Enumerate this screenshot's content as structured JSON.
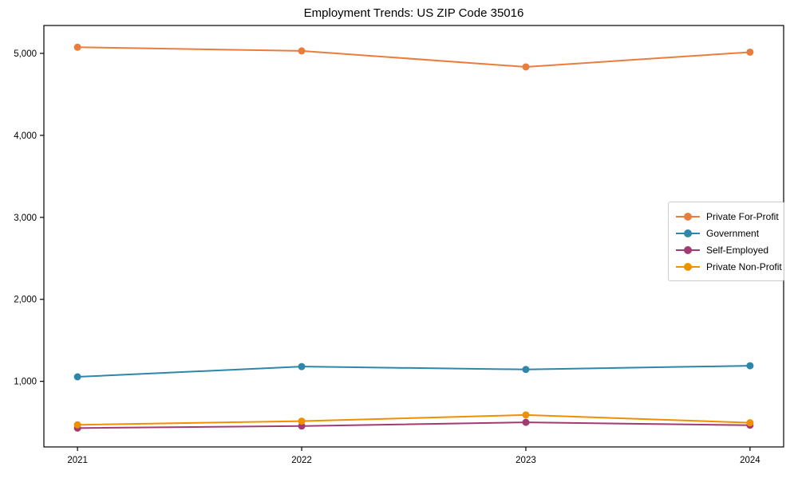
{
  "chart_data": {
    "type": "line",
    "title": "Employment Trends: US ZIP Code 35016",
    "xlabel": "",
    "ylabel": "",
    "x": [
      2021,
      2022,
      2023,
      2024
    ],
    "x_tick_labels": [
      "2021",
      "2022",
      "2023",
      "2024"
    ],
    "yticks": [
      1000,
      2000,
      3000,
      4000,
      5000
    ],
    "ytick_labels": [
      "1,000",
      "2,000",
      "3,000",
      "4,000",
      "5,000"
    ],
    "xlim": [
      2020.85,
      2024.15
    ],
    "ylim": [
      200,
      5340
    ],
    "grid": false,
    "legend_position": "center right",
    "marker": "circle",
    "line_width": 2,
    "marker_radius": 4.5,
    "background_color": "#ffffff",
    "axes_color": "#000000",
    "series": [
      {
        "name": "Private For-Profit",
        "color": "#E87D3E",
        "values": [
          5075,
          5030,
          4835,
          5015
        ]
      },
      {
        "name": "Government",
        "color": "#2E86AB",
        "values": [
          1055,
          1180,
          1145,
          1190
        ]
      },
      {
        "name": "Self-Employed",
        "color": "#A23B72",
        "values": [
          430,
          455,
          500,
          465
        ]
      },
      {
        "name": "Private Non-Profit",
        "color": "#F18F01",
        "values": [
          470,
          515,
          590,
          495
        ]
      }
    ]
  }
}
